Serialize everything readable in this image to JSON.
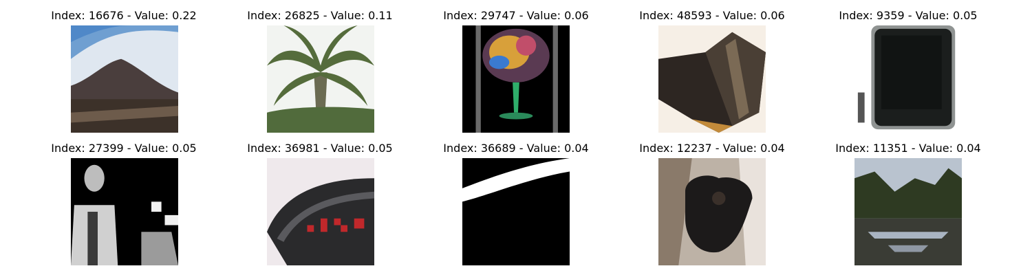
{
  "grid": {
    "rows": [
      [
        {
          "title": "Index: 16676 - Value: 0.22"
        },
        {
          "title": "Index: 26825 - Value: 0.11"
        },
        {
          "title": "Index: 29747 - Value: 0.06"
        },
        {
          "title": "Index: 48593 - Value: 0.06"
        },
        {
          "title": "Index: 9359 - Value: 0.05"
        }
      ],
      [
        {
          "title": "Index: 27399 - Value: 0.05"
        },
        {
          "title": "Index: 36981 - Value: 0.05"
        },
        {
          "title": "Index: 36689 - Value: 0.04"
        },
        {
          "title": "Index: 12237 - Value: 0.04"
        },
        {
          "title": "Index: 11351 - Value: 0.04"
        }
      ]
    ]
  }
}
